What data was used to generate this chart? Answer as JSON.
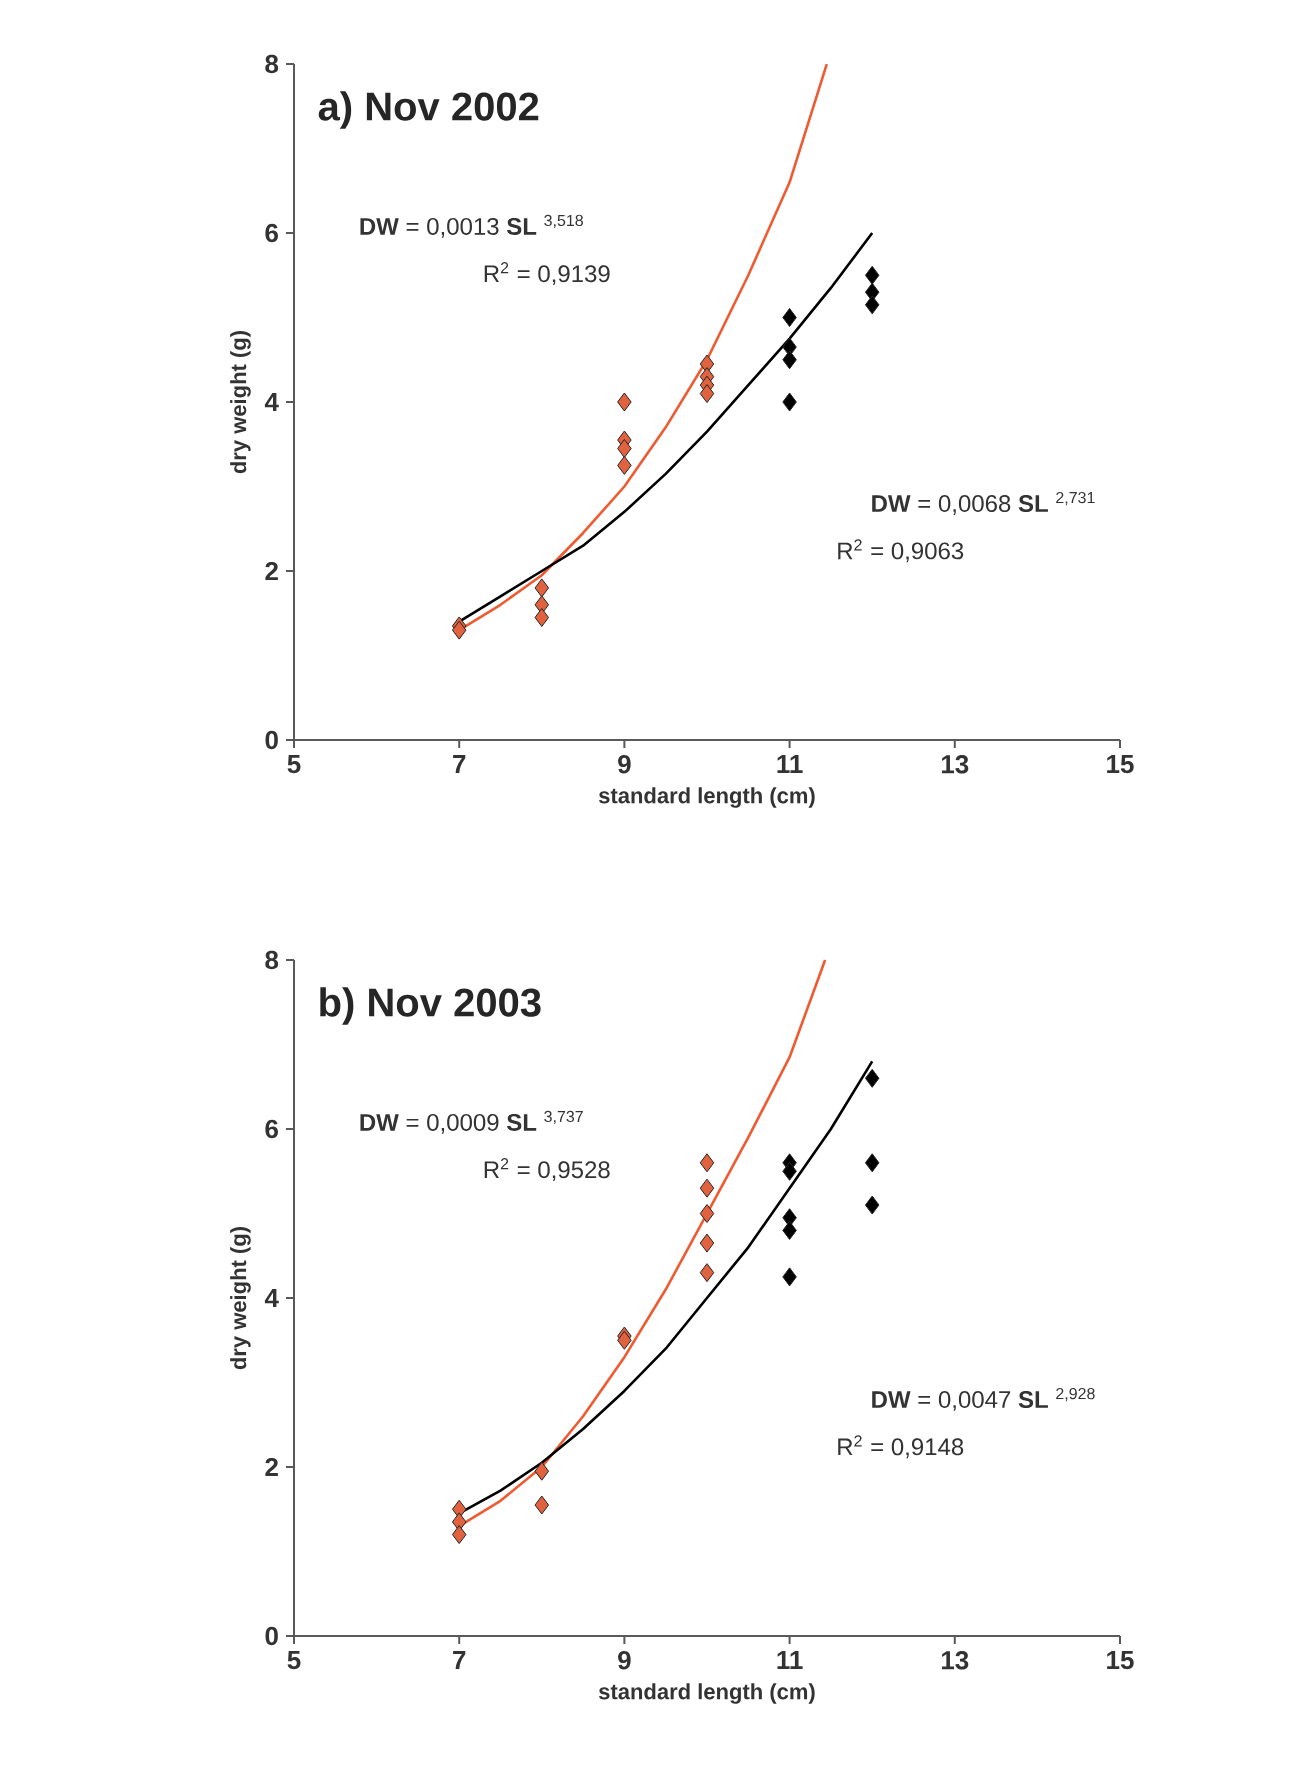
{
  "chart_data": [
    {
      "type": "scatter",
      "title": "a) Nov 2002",
      "xlabel": "standard length (cm)",
      "ylabel": "dry weight (g)",
      "xlim": [
        5,
        15
      ],
      "ylim": [
        0,
        8
      ],
      "xticks": [
        5,
        7,
        9,
        11,
        13,
        15
      ],
      "yticks": [
        0,
        2,
        4,
        6,
        8
      ],
      "annotations": [
        "**DW** = 0,0013 **SL** $^{3,518}$",
        "R$^{2}$ = 0,9139",
        "**DW** = 0,0068 **SL** $^{2,731}$",
        "R$^{2}$ = 0,9063"
      ],
      "series": [
        {
          "color": "#e0623e",
          "marker": "diamond",
          "x": [
            7,
            7,
            8,
            8,
            8,
            9,
            9,
            9,
            9,
            10,
            10,
            10,
            10
          ],
          "values": [
            1.35,
            1.3,
            1.8,
            1.6,
            1.45,
            4.0,
            3.55,
            3.45,
            3.25,
            4.45,
            4.3,
            4.2,
            4.1
          ]
        },
        {
          "color": "#000000",
          "marker": "diamond",
          "x": [
            11,
            11,
            11,
            11,
            12,
            12,
            12
          ],
          "values": [
            5.0,
            4.65,
            4.5,
            4.0,
            5.5,
            5.3,
            5.15
          ]
        },
        {
          "type": "line",
          "color": "#f05a30",
          "x": [
            7,
            7.5,
            8,
            8.5,
            9,
            9.5,
            10,
            10.5,
            11,
            11.45
          ],
          "values": [
            1.3,
            1.6,
            1.95,
            2.45,
            3.0,
            3.7,
            4.5,
            5.5,
            6.6,
            8.0
          ]
        },
        {
          "type": "line",
          "color": "#000000",
          "x": [
            7,
            7.5,
            8,
            8.5,
            9,
            9.5,
            10,
            10.5,
            11,
            11.5,
            12
          ],
          "values": [
            1.4,
            1.7,
            2.0,
            2.3,
            2.7,
            3.15,
            3.65,
            4.2,
            4.75,
            5.35,
            6.0
          ]
        }
      ]
    },
    {
      "type": "scatter",
      "title": "b) Nov 2003",
      "xlabel": "standard length (cm)",
      "ylabel": "dry weight (g)",
      "xlim": [
        5,
        15
      ],
      "ylim": [
        0,
        8
      ],
      "xticks": [
        5,
        7,
        9,
        11,
        13,
        15
      ],
      "yticks": [
        0,
        2,
        4,
        6,
        8
      ],
      "annotations": [
        "**DW** = 0,0009 **SL** $^{3,737}$",
        "R$^{2}$ = 0,9528",
        "**DW** = 0,0047 **SL** $^{2,928}$",
        "R$^{2}$ = 0,9148"
      ],
      "series": [
        {
          "color": "#e0623e",
          "marker": "diamond",
          "x": [
            7,
            7,
            7,
            8,
            8,
            9,
            9,
            10,
            10,
            10,
            10,
            10
          ],
          "values": [
            1.5,
            1.35,
            1.2,
            1.95,
            1.55,
            3.55,
            3.5,
            5.6,
            5.3,
            5.0,
            4.65,
            4.3
          ]
        },
        {
          "color": "#000000",
          "marker": "diamond",
          "x": [
            11,
            11,
            11,
            11,
            11,
            12,
            12,
            12
          ],
          "values": [
            5.6,
            5.5,
            4.95,
            4.8,
            4.25,
            6.6,
            5.6,
            5.1
          ]
        },
        {
          "type": "line",
          "color": "#f05a30",
          "x": [
            7,
            7.5,
            8,
            8.5,
            9,
            9.5,
            10,
            10.5,
            11,
            11.43
          ],
          "values": [
            1.3,
            1.6,
            2.0,
            2.6,
            3.3,
            4.1,
            5.0,
            5.9,
            6.85,
            8.0
          ]
        },
        {
          "type": "line",
          "color": "#000000",
          "x": [
            7,
            7.5,
            8,
            8.5,
            9,
            9.5,
            10,
            10.5,
            11,
            11.5,
            12
          ],
          "values": [
            1.45,
            1.72,
            2.05,
            2.45,
            2.9,
            3.4,
            4.0,
            4.6,
            5.3,
            6.0,
            6.8
          ]
        }
      ]
    }
  ]
}
